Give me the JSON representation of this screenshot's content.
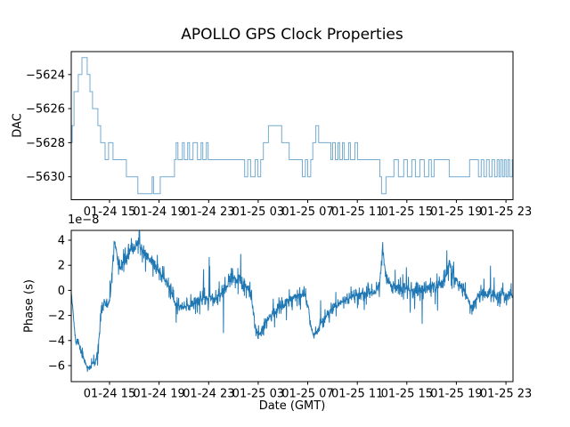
{
  "chart_data": [
    {
      "type": "step-line",
      "name": "dac",
      "title": "APOLLO GPS Clock Properties",
      "ylabel": "DAC",
      "line_color": "#1f77b4",
      "xlim": [
        0,
        35.66
      ],
      "ylim": [
        -5631.35,
        -5622.65
      ],
      "xticks": [
        3.09,
        7.09,
        11.09,
        15.09,
        19.09,
        23.09,
        27.09,
        31.09,
        35.09
      ],
      "xtick_labels": [
        "01-24 15",
        "01-24 19",
        "01-24 23",
        "01-25 03",
        "01-25 07",
        "01-25 11",
        "01-25 15",
        "01-25 19",
        "01-25 23"
      ],
      "yticks": [
        -5624,
        -5626,
        -5628,
        -5630
      ],
      "ytick_labels": [
        "−5624",
        "−5626",
        "−5628",
        "−5630"
      ],
      "points": [
        [
          0,
          -5628
        ],
        [
          0.07,
          -5627
        ],
        [
          0.22,
          -5625
        ],
        [
          0.57,
          -5624
        ],
        [
          0.86,
          -5623
        ],
        [
          1.29,
          -5624
        ],
        [
          1.51,
          -5625
        ],
        [
          1.72,
          -5626
        ],
        [
          2.15,
          -5627
        ],
        [
          2.37,
          -5628
        ],
        [
          2.73,
          -5629
        ],
        [
          3.01,
          -5628
        ],
        [
          3.37,
          -5629
        ],
        [
          4.45,
          -5630
        ],
        [
          5.38,
          -5631
        ],
        [
          6.53,
          -5630
        ],
        [
          6.64,
          -5631
        ],
        [
          7.18,
          -5630
        ],
        [
          8.33,
          -5629
        ],
        [
          8.47,
          -5628
        ],
        [
          8.61,
          -5629
        ],
        [
          8.97,
          -5628
        ],
        [
          9.12,
          -5629
        ],
        [
          9.4,
          -5628
        ],
        [
          9.55,
          -5629
        ],
        [
          9.83,
          -5628
        ],
        [
          10.19,
          -5629
        ],
        [
          10.48,
          -5628
        ],
        [
          10.62,
          -5629
        ],
        [
          10.91,
          -5628
        ],
        [
          11.05,
          -5629
        ],
        [
          14.0,
          -5630
        ],
        [
          14.24,
          -5629
        ],
        [
          14.48,
          -5630
        ],
        [
          14.84,
          -5629
        ],
        [
          15.07,
          -5630
        ],
        [
          15.29,
          -5629
        ],
        [
          15.51,
          -5628
        ],
        [
          15.92,
          -5627
        ],
        [
          16.99,
          -5628
        ],
        [
          17.59,
          -5629
        ],
        [
          18.66,
          -5630
        ],
        [
          18.9,
          -5629
        ],
        [
          19.09,
          -5630
        ],
        [
          19.33,
          -5629
        ],
        [
          19.5,
          -5628
        ],
        [
          19.74,
          -5627
        ],
        [
          19.97,
          -5628
        ],
        [
          20.96,
          -5629
        ],
        [
          21.1,
          -5628
        ],
        [
          21.32,
          -5629
        ],
        [
          21.53,
          -5628
        ],
        [
          21.67,
          -5629
        ],
        [
          21.89,
          -5628
        ],
        [
          22.03,
          -5629
        ],
        [
          22.39,
          -5628
        ],
        [
          22.53,
          -5629
        ],
        [
          22.9,
          -5628
        ],
        [
          23.11,
          -5629
        ],
        [
          24.91,
          -5630
        ],
        [
          25.05,
          -5631
        ],
        [
          25.41,
          -5630
        ],
        [
          26.05,
          -5629
        ],
        [
          26.41,
          -5630
        ],
        [
          26.84,
          -5629
        ],
        [
          27.13,
          -5630
        ],
        [
          27.49,
          -5629
        ],
        [
          27.78,
          -5630
        ],
        [
          28.14,
          -5629
        ],
        [
          28.5,
          -5630
        ],
        [
          28.86,
          -5629
        ],
        [
          29.07,
          -5630
        ],
        [
          29.29,
          -5629
        ],
        [
          30.51,
          -5630
        ],
        [
          32.16,
          -5629
        ],
        [
          32.87,
          -5630
        ],
        [
          33.09,
          -5629
        ],
        [
          33.31,
          -5630
        ],
        [
          33.52,
          -5629
        ],
        [
          33.74,
          -5630
        ],
        [
          33.96,
          -5629
        ],
        [
          34.17,
          -5630
        ],
        [
          34.38,
          -5629
        ],
        [
          34.53,
          -5630
        ],
        [
          34.67,
          -5629
        ],
        [
          34.82,
          -5630
        ],
        [
          34.96,
          -5629
        ],
        [
          35.1,
          -5630
        ],
        [
          35.25,
          -5629
        ],
        [
          35.39,
          -5630
        ],
        [
          35.6,
          -5629
        ],
        [
          35.66,
          -5629
        ]
      ]
    },
    {
      "type": "noisy-line",
      "name": "phase",
      "ylabel": "Phase (s)",
      "xlabel": "Date (GMT)",
      "offset_label": "1e−8",
      "line_color": "#1f77b4",
      "xlim": [
        0,
        35.66
      ],
      "ylim": [
        -7.28,
        4.78
      ],
      "xticks": [
        3.09,
        7.09,
        11.09,
        15.09,
        19.09,
        23.09,
        27.09,
        31.09,
        35.09
      ],
      "xtick_labels": [
        "01-24 15",
        "01-24 19",
        "01-24 23",
        "01-25 03",
        "01-25 07",
        "01-25 11",
        "01-25 15",
        "01-25 19",
        "01-25 23"
      ],
      "yticks": [
        4,
        2,
        0,
        -2,
        -4,
        -6
      ],
      "ytick_labels": [
        "4",
        "2",
        "0",
        "−2",
        "−4",
        "−6"
      ],
      "noise": {
        "seed": 11,
        "samples_per_hour": 48
      },
      "keypoints": [
        [
          0,
          -0.1,
          0.03
        ],
        [
          0.07,
          -0.8,
          0.05
        ],
        [
          0.22,
          -2.6,
          0.08
        ],
        [
          0.36,
          -4.2,
          0.1
        ],
        [
          0.57,
          -4.0,
          0.11
        ],
        [
          0.79,
          -4.9,
          0.11
        ],
        [
          1.0,
          -5.4,
          0.12
        ],
        [
          1.29,
          -6.1,
          0.09
        ],
        [
          1.51,
          -6.3,
          0.07
        ],
        [
          1.72,
          -5.7,
          0.12
        ],
        [
          1.94,
          -5.9,
          0.12
        ],
        [
          2.15,
          -4.6,
          0.15
        ],
        [
          2.3,
          -3.2,
          0.15
        ],
        [
          2.44,
          -1.6,
          0.18
        ],
        [
          2.66,
          -0.9,
          0.18
        ],
        [
          2.87,
          -1.3,
          0.18
        ],
        [
          3.09,
          -1.0,
          0.18
        ],
        [
          3.23,
          0.5,
          0.18
        ],
        [
          3.37,
          2.5,
          0.18
        ],
        [
          3.52,
          3.9,
          0.1
        ],
        [
          3.66,
          2.8,
          0.18
        ],
        [
          3.8,
          1.6,
          0.18
        ],
        [
          4.02,
          2.0,
          0.21
        ],
        [
          4.24,
          2.3,
          0.21
        ],
        [
          4.52,
          2.7,
          0.21
        ],
        [
          4.81,
          3.2,
          0.18
        ],
        [
          5.1,
          3.4,
          0.18
        ],
        [
          5.38,
          3.9,
          0.12
        ],
        [
          5.6,
          3.4,
          0.18
        ],
        [
          5.89,
          3.0,
          0.21
        ],
        [
          6.25,
          2.6,
          0.21
        ],
        [
          6.68,
          2.1,
          0.21
        ],
        [
          7.11,
          1.5,
          0.21
        ],
        [
          7.54,
          0.9,
          0.21
        ],
        [
          7.9,
          0.3,
          0.21
        ],
        [
          8.26,
          -0.9,
          0.21
        ],
        [
          8.61,
          -1.3,
          0.24
        ],
        [
          9.04,
          -1.4,
          0.24
        ],
        [
          9.47,
          -1.3,
          0.24
        ],
        [
          9.9,
          -0.9,
          0.24
        ],
        [
          10.41,
          -0.7,
          0.24
        ],
        [
          10.91,
          -0.6,
          0.24
        ],
        [
          11.41,
          -0.7,
          0.24
        ],
        [
          11.92,
          -0.5,
          0.24
        ],
        [
          12.35,
          0.0,
          0.24
        ],
        [
          12.78,
          0.7,
          0.24
        ],
        [
          13.14,
          1.0,
          0.24
        ],
        [
          13.49,
          0.8,
          0.24
        ],
        [
          13.85,
          0.4,
          0.24
        ],
        [
          14.21,
          0.2,
          0.21
        ],
        [
          14.57,
          -0.8,
          0.18
        ],
        [
          14.86,
          -2.8,
          0.15
        ],
        [
          15.08,
          -3.7,
          0.12
        ],
        [
          15.29,
          -3.3,
          0.15
        ],
        [
          15.57,
          -2.6,
          0.18
        ],
        [
          15.93,
          -2.2,
          0.18
        ],
        [
          16.37,
          -1.8,
          0.18
        ],
        [
          16.87,
          -1.3,
          0.21
        ],
        [
          17.37,
          -0.9,
          0.21
        ],
        [
          17.94,
          -0.5,
          0.21
        ],
        [
          18.44,
          -0.3,
          0.21
        ],
        [
          18.88,
          -0.4,
          0.18
        ],
        [
          19.16,
          -1.5,
          0.18
        ],
        [
          19.38,
          -3.0,
          0.15
        ],
        [
          19.6,
          -3.6,
          0.12
        ],
        [
          19.88,
          -3.1,
          0.15
        ],
        [
          20.24,
          -2.5,
          0.18
        ],
        [
          20.67,
          -1.9,
          0.18
        ],
        [
          21.17,
          -1.4,
          0.21
        ],
        [
          21.68,
          -1.0,
          0.21
        ],
        [
          22.25,
          -0.7,
          0.21
        ],
        [
          22.83,
          -0.4,
          0.21
        ],
        [
          23.4,
          -0.3,
          0.24
        ],
        [
          23.97,
          -0.2,
          0.24
        ],
        [
          24.55,
          -0.1,
          0.24
        ],
        [
          24.91,
          0.5,
          0.18
        ],
        [
          25.12,
          3.4,
          0.15
        ],
        [
          25.34,
          1.6,
          0.18
        ],
        [
          25.63,
          0.6,
          0.21
        ],
        [
          26.13,
          0.2,
          0.24
        ],
        [
          26.7,
          0.0,
          0.27
        ],
        [
          27.28,
          0.1,
          0.27
        ],
        [
          27.85,
          -0.2,
          0.27
        ],
        [
          28.43,
          0.0,
          0.24
        ],
        [
          29.0,
          0.3,
          0.24
        ],
        [
          29.57,
          0.4,
          0.27
        ],
        [
          30.15,
          0.9,
          0.27
        ],
        [
          30.51,
          2.3,
          0.18
        ],
        [
          30.72,
          1.4,
          0.21
        ],
        [
          31.08,
          0.8,
          0.24
        ],
        [
          31.51,
          0.4,
          0.24
        ],
        [
          31.94,
          -0.6,
          0.21
        ],
        [
          32.3,
          -1.3,
          0.18
        ],
        [
          32.66,
          -0.8,
          0.21
        ],
        [
          33.09,
          -0.3,
          0.24
        ],
        [
          33.67,
          -0.3,
          0.24
        ],
        [
          34.24,
          -0.4,
          0.24
        ],
        [
          34.82,
          -0.3,
          0.24
        ],
        [
          35.32,
          -0.5,
          0.21
        ],
        [
          35.66,
          -0.4,
          0.15
        ]
      ]
    }
  ]
}
